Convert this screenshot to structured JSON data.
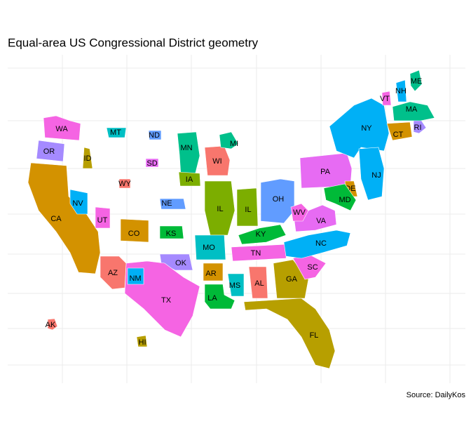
{
  "chart_data": {
    "type": "map",
    "title": "Equal-area US Congressional District geometry",
    "caption": "Source: DailyKos",
    "grid": true,
    "states": [
      {
        "label": "WA",
        "color": "#f564e3"
      },
      {
        "label": "OR",
        "color": "#a58aff"
      },
      {
        "label": "CA",
        "color": "#d39200"
      },
      {
        "label": "ID",
        "color": "#b79f00"
      },
      {
        "label": "NV",
        "color": "#00b0f6"
      },
      {
        "label": "MT",
        "color": "#00bfc4"
      },
      {
        "label": "ND",
        "color": "#619cff"
      },
      {
        "label": "SD",
        "color": "#e76bf3"
      },
      {
        "label": "WY",
        "color": "#f8766d"
      },
      {
        "label": "UT",
        "color": "#f564e3"
      },
      {
        "label": "CO",
        "color": "#d39200"
      },
      {
        "label": "NE",
        "color": "#619cff"
      },
      {
        "label": "KS",
        "color": "#00ba38"
      },
      {
        "label": "MN",
        "color": "#00c08b"
      },
      {
        "label": "IA",
        "color": "#7cae00"
      },
      {
        "label": "WI",
        "color": "#f8766d"
      },
      {
        "label": "MI",
        "color": "#00c08b"
      },
      {
        "label": "IL",
        "color": "#7cae00"
      },
      {
        "label": "IL",
        "color": "#7cae00"
      },
      {
        "label": "OH",
        "color": "#619cff"
      },
      {
        "label": "MO",
        "color": "#00bfc4"
      },
      {
        "label": "OK",
        "color": "#a58aff"
      },
      {
        "label": "AR",
        "color": "#d39200"
      },
      {
        "label": "TX",
        "color": "#f564e3"
      },
      {
        "label": "NM",
        "color": "#00b0f6"
      },
      {
        "label": "AZ",
        "color": "#f8766d"
      },
      {
        "label": "LA",
        "color": "#00ba38"
      },
      {
        "label": "MS",
        "color": "#00bfc4"
      },
      {
        "label": "AL",
        "color": "#f8766d"
      },
      {
        "label": "TN",
        "color": "#f564e3"
      },
      {
        "label": "KY",
        "color": "#00ba38"
      },
      {
        "label": "GA",
        "color": "#b79f00"
      },
      {
        "label": "FL",
        "color": "#b79f00"
      },
      {
        "label": "SC",
        "color": "#f564e3"
      },
      {
        "label": "NC",
        "color": "#00b0f6"
      },
      {
        "label": "VA",
        "color": "#e76bf3"
      },
      {
        "label": "WV",
        "color": "#f564e3"
      },
      {
        "label": "PA",
        "color": "#e76bf3"
      },
      {
        "label": "NY",
        "color": "#00b0f6"
      },
      {
        "label": "NJ",
        "color": "#00b0f6"
      },
      {
        "label": "DE",
        "color": "#d39200"
      },
      {
        "label": "MD",
        "color": "#00ba38"
      },
      {
        "label": "CT",
        "color": "#d39200"
      },
      {
        "label": "RI",
        "color": "#a58aff"
      },
      {
        "label": "MA",
        "color": "#00c08b"
      },
      {
        "label": "VT",
        "color": "#f564e3"
      },
      {
        "label": "NH",
        "color": "#00b0f6"
      },
      {
        "label": "ME",
        "color": "#00c08b"
      },
      {
        "label": "AK",
        "color": "#f8766d"
      },
      {
        "label": "HI",
        "color": "#b79f00"
      }
    ]
  }
}
